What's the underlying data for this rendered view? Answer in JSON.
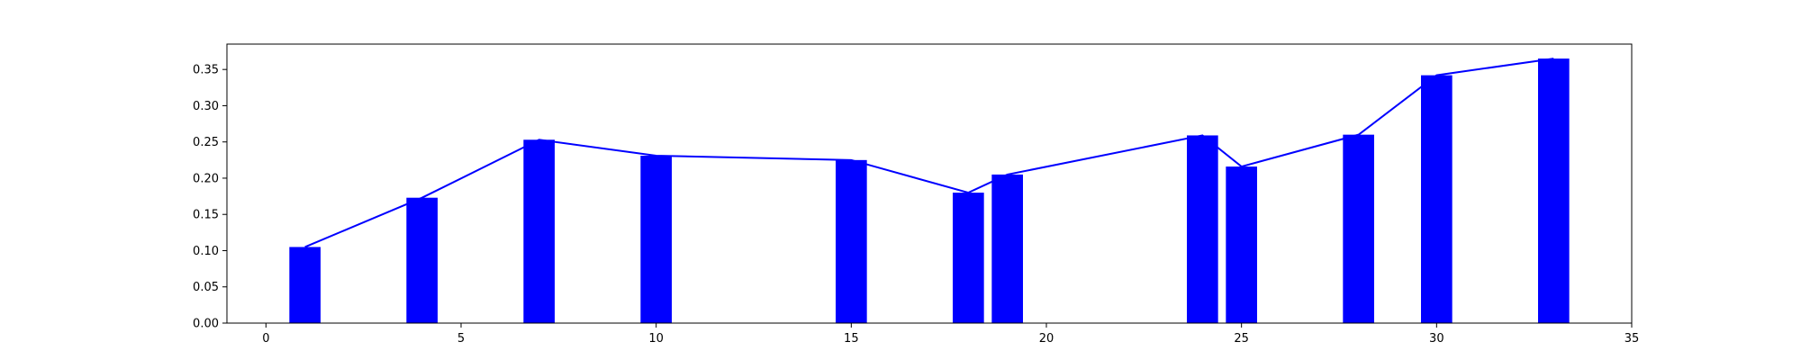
{
  "chart_data": {
    "type": "bar",
    "title": "",
    "xlabel": "",
    "ylabel": "",
    "xlim": [
      -1,
      35
    ],
    "ylim": [
      0,
      0.385
    ],
    "grid": false,
    "legend": "none",
    "bar_width": 0.8,
    "x": [
      1,
      4,
      7,
      10,
      15,
      18,
      19,
      24,
      25,
      28,
      30,
      33
    ],
    "values": [
      0.105,
      0.173,
      0.253,
      0.231,
      0.225,
      0.18,
      0.205,
      0.259,
      0.216,
      0.26,
      0.342,
      0.365
    ],
    "line_overlay": true,
    "x_ticks": [
      0,
      5,
      10,
      15,
      20,
      25,
      30,
      35
    ],
    "x_tick_labels": [
      "0",
      "5",
      "10",
      "15",
      "20",
      "25",
      "30",
      "35"
    ],
    "y_ticks": [
      0,
      0.05,
      0.1,
      0.15,
      0.2,
      0.25,
      0.3,
      0.35
    ],
    "y_tick_labels": [
      "0.00",
      "0.05",
      "0.10",
      "0.15",
      "0.20",
      "0.25",
      "0.30",
      "0.35"
    ],
    "colors": {
      "bar": "#0000ff",
      "line": "#0000ff",
      "axes": "#000000"
    }
  }
}
